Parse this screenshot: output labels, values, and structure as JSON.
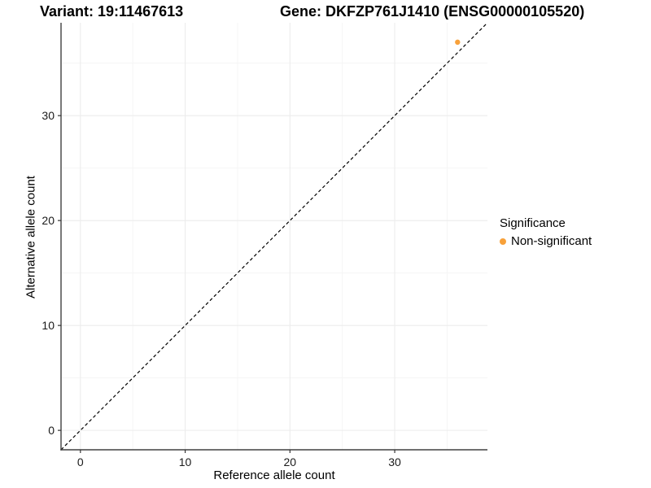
{
  "titles": {
    "variant": "Variant: 19:11467613",
    "gene": "Gene: DKFZP761J1410 (ENSG00000105520)"
  },
  "axes": {
    "x_label": "Reference allele count",
    "y_label": "Alternative allele count"
  },
  "legend": {
    "title": "Significance",
    "items": [
      {
        "label": "Non-significant",
        "color": "#F8A13A",
        "marker": "filled-circle"
      }
    ]
  },
  "chart_data": {
    "type": "scatter",
    "title": "Variant: 19:11467613 | Gene: DKFZP761J1410 (ENSG00000105520)",
    "xlabel": "Reference allele count",
    "ylabel": "Alternative allele count",
    "xlim": [
      -1.85,
      38.85
    ],
    "ylim": [
      -1.85,
      38.85
    ],
    "x_breaks": [
      0,
      10,
      20,
      30
    ],
    "y_breaks": [
      0,
      10,
      20,
      30
    ],
    "x_minor_breaks": [
      5,
      15,
      25,
      35
    ],
    "y_minor_breaks": [
      5,
      15,
      25,
      35
    ],
    "grid": true,
    "legend_position": "right",
    "reference_line": {
      "type": "identity y=x",
      "style": "dashed",
      "color": "#000000"
    },
    "series": [
      {
        "name": "Non-significant",
        "color": "#F8A13A",
        "points": [
          {
            "x": 36,
            "y": 37
          }
        ]
      }
    ]
  }
}
